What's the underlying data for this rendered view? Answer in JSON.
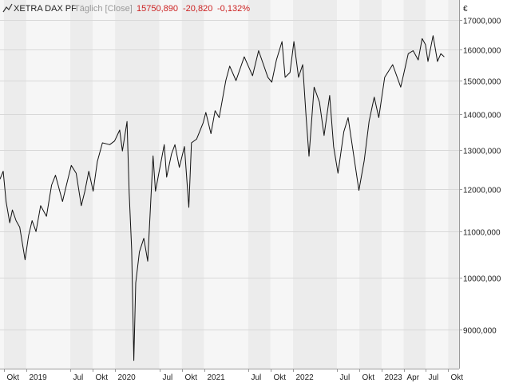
{
  "header": {
    "symbol": "XETRA DAX PF",
    "interval": "Täglich [Close]",
    "last": "15750,890",
    "change": "-20,820",
    "change_pct": "-0,132%"
  },
  "colors": {
    "line": "#111111",
    "negative": "#cc2222",
    "band_light": "#f6f6f6",
    "band_dark": "#ececec",
    "grid": "#d8d8d8"
  },
  "chart_data": {
    "type": "line",
    "title": "XETRA DAX PF",
    "currency_label": "€",
    "y_scale": "log",
    "ylim": [
      8300,
      17700
    ],
    "xlim": [
      "2018-09-15",
      "2023-11-15"
    ],
    "y_ticks": [
      {
        "value": 9000,
        "label": "9000,000"
      },
      {
        "value": 10000,
        "label": "10000,000"
      },
      {
        "value": 11000,
        "label": "11000,000"
      },
      {
        "value": 12000,
        "label": "12000,000"
      },
      {
        "value": 13000,
        "label": "13000,000"
      },
      {
        "value": 14000,
        "label": "14000,000"
      },
      {
        "value": 15000,
        "label": "15000,000"
      },
      {
        "value": 16000,
        "label": "16000,000"
      },
      {
        "value": 17000,
        "label": "17000,000"
      }
    ],
    "x_ticks": [
      {
        "date": "2018-10-01",
        "label": "Okt"
      },
      {
        "date": "2019-01-01",
        "label": "2019"
      },
      {
        "date": "2019-07-01",
        "label": "Jul"
      },
      {
        "date": "2019-10-01",
        "label": "Okt"
      },
      {
        "date": "2020-01-01",
        "label": "2020"
      },
      {
        "date": "2020-07-01",
        "label": "Jul"
      },
      {
        "date": "2020-10-01",
        "label": "Okt"
      },
      {
        "date": "2021-01-01",
        "label": "2021"
      },
      {
        "date": "2021-07-01",
        "label": "Jul"
      },
      {
        "date": "2021-10-01",
        "label": "Okt"
      },
      {
        "date": "2022-01-01",
        "label": "2022"
      },
      {
        "date": "2022-07-01",
        "label": "Jul"
      },
      {
        "date": "2022-10-01",
        "label": "Okt"
      },
      {
        "date": "2023-01-01",
        "label": "2023"
      },
      {
        "date": "2023-04-01",
        "label": "Apr"
      },
      {
        "date": "2023-07-01",
        "label": "Jul"
      },
      {
        "date": "2023-10-01",
        "label": "Okt"
      }
    ],
    "series": [
      {
        "name": "XETRA DAX PF",
        "points": [
          [
            "2018-09-15",
            12250
          ],
          [
            "2018-09-28",
            12450
          ],
          [
            "2018-10-10",
            11700
          ],
          [
            "2018-10-25",
            11200
          ],
          [
            "2018-11-05",
            11500
          ],
          [
            "2018-11-20",
            11250
          ],
          [
            "2018-12-05",
            11100
          ],
          [
            "2018-12-27",
            10380
          ],
          [
            "2019-01-10",
            10900
          ],
          [
            "2019-01-25",
            11250
          ],
          [
            "2019-02-10",
            11000
          ],
          [
            "2019-03-01",
            11600
          ],
          [
            "2019-03-25",
            11350
          ],
          [
            "2019-04-15",
            12100
          ],
          [
            "2019-05-01",
            12350
          ],
          [
            "2019-05-30",
            11700
          ],
          [
            "2019-06-15",
            12100
          ],
          [
            "2019-07-05",
            12600
          ],
          [
            "2019-07-25",
            12400
          ],
          [
            "2019-08-15",
            11600
          ],
          [
            "2019-08-30",
            11950
          ],
          [
            "2019-09-15",
            12450
          ],
          [
            "2019-10-03",
            11950
          ],
          [
            "2019-10-20",
            12700
          ],
          [
            "2019-11-10",
            13200
          ],
          [
            "2019-12-10",
            13150
          ],
          [
            "2019-12-30",
            13250
          ],
          [
            "2020-01-20",
            13550
          ],
          [
            "2020-01-31",
            12980
          ],
          [
            "2020-02-19",
            13790
          ],
          [
            "2020-02-28",
            11900
          ],
          [
            "2020-03-09",
            10600
          ],
          [
            "2020-03-18",
            8442
          ],
          [
            "2020-03-26",
            9900
          ],
          [
            "2020-04-10",
            10550
          ],
          [
            "2020-04-28",
            10850
          ],
          [
            "2020-05-14",
            10350
          ],
          [
            "2020-06-05",
            12850
          ],
          [
            "2020-06-15",
            11950
          ],
          [
            "2020-07-08",
            12700
          ],
          [
            "2020-07-21",
            13150
          ],
          [
            "2020-07-31",
            12300
          ],
          [
            "2020-08-20",
            12900
          ],
          [
            "2020-09-03",
            13150
          ],
          [
            "2020-09-21",
            12550
          ],
          [
            "2020-10-12",
            13100
          ],
          [
            "2020-10-30",
            11560
          ],
          [
            "2020-11-10",
            13200
          ],
          [
            "2020-12-01",
            13300
          ],
          [
            "2020-12-28",
            13750
          ],
          [
            "2021-01-08",
            14050
          ],
          [
            "2021-01-29",
            13450
          ],
          [
            "2021-02-15",
            14100
          ],
          [
            "2021-03-04",
            13900
          ],
          [
            "2021-03-31",
            15000
          ],
          [
            "2021-04-16",
            15450
          ],
          [
            "2021-05-12",
            15000
          ],
          [
            "2021-06-15",
            15750
          ],
          [
            "2021-07-19",
            15150
          ],
          [
            "2021-08-13",
            15950
          ],
          [
            "2021-09-20",
            15100
          ],
          [
            "2021-10-06",
            14950
          ],
          [
            "2021-10-25",
            15650
          ],
          [
            "2021-11-17",
            16250
          ],
          [
            "2021-11-30",
            15100
          ],
          [
            "2021-12-20",
            15250
          ],
          [
            "2022-01-05",
            16250
          ],
          [
            "2022-01-24",
            15100
          ],
          [
            "2022-02-10",
            15500
          ],
          [
            "2022-02-24",
            13950
          ],
          [
            "2022-03-08",
            12840
          ],
          [
            "2022-03-29",
            14800
          ],
          [
            "2022-04-20",
            14350
          ],
          [
            "2022-05-09",
            13400
          ],
          [
            "2022-06-01",
            14550
          ],
          [
            "2022-06-17",
            13100
          ],
          [
            "2022-07-05",
            12400
          ],
          [
            "2022-07-29",
            13500
          ],
          [
            "2022-08-16",
            13900
          ],
          [
            "2022-09-29",
            11970
          ],
          [
            "2022-10-21",
            12730
          ],
          [
            "2022-11-10",
            13800
          ],
          [
            "2022-12-01",
            14500
          ],
          [
            "2022-12-20",
            13900
          ],
          [
            "2023-01-13",
            15100
          ],
          [
            "2023-02-15",
            15500
          ],
          [
            "2023-03-20",
            14800
          ],
          [
            "2023-04-20",
            15850
          ],
          [
            "2023-05-10",
            15950
          ],
          [
            "2023-05-31",
            15650
          ],
          [
            "2023-06-16",
            16350
          ],
          [
            "2023-06-30",
            16150
          ],
          [
            "2023-07-10",
            15600
          ],
          [
            "2023-07-31",
            16450
          ],
          [
            "2023-08-18",
            15600
          ],
          [
            "2023-09-01",
            15850
          ],
          [
            "2023-09-15",
            15750
          ]
        ]
      }
    ]
  }
}
